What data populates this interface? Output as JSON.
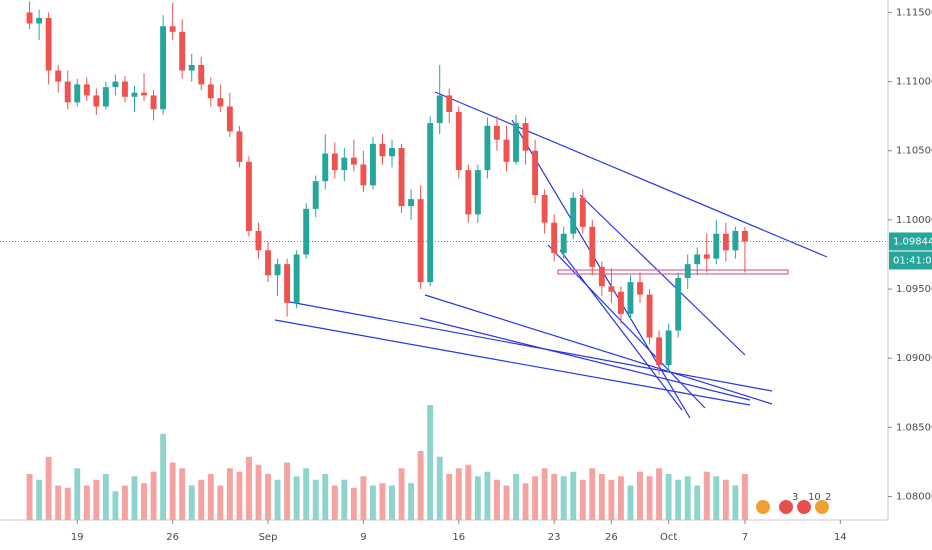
{
  "chart_data": {
    "type": "candlestick",
    "up_color": "#26a69a",
    "down_color": "#ef5350",
    "up_volume_color": "#8fd4cc",
    "down_volume_color": "#f5a3a1",
    "xlim": [
      -4.05,
      42.5
    ],
    "ylim": [
      1.0783,
      1.1159
    ],
    "xticks": [
      {
        "value": 0,
        "label": "19"
      },
      {
        "value": 5,
        "label": "26"
      },
      {
        "value": 10,
        "label": "Sep"
      },
      {
        "value": 15,
        "label": "9"
      },
      {
        "value": 20,
        "label": "16"
      },
      {
        "value": 25,
        "label": "23"
      },
      {
        "value": 28,
        "label": "26"
      },
      {
        "value": 31,
        "label": "Oct"
      },
      {
        "value": 35,
        "label": "7"
      },
      {
        "value": 40,
        "label": "14"
      }
    ],
    "yticks": [
      {
        "value": 1.08,
        "label": "1.08000"
      },
      {
        "value": 1.085,
        "label": "1.08500"
      },
      {
        "value": 1.09,
        "label": "1.09000"
      },
      {
        "value": 1.095,
        "label": "1.09500"
      },
      {
        "value": 1.1,
        "label": "1.10000"
      },
      {
        "value": 1.105,
        "label": "1.10500"
      },
      {
        "value": 1.11,
        "label": "1.11000"
      },
      {
        "value": 1.115,
        "label": "1.11500"
      }
    ],
    "last_price": {
      "value": 1.09844,
      "label": "1.09844"
    },
    "countdown": "01:41:03",
    "event_labels": [
      "3",
      "10",
      "2"
    ],
    "candles": [
      [
        -2.5,
        1.115,
        1.1158,
        1.1138,
        1.1142
      ],
      [
        -2,
        1.1142,
        1.1152,
        1.113,
        1.1146
      ],
      [
        -1.5,
        1.1146,
        1.115,
        1.1098,
        1.1108
      ],
      [
        -1,
        1.1108,
        1.1112,
        1.1092,
        1.11
      ],
      [
        -0.5,
        1.11,
        1.1108,
        1.108,
        1.1085
      ],
      [
        0,
        1.1085,
        1.1102,
        1.1082,
        1.1098
      ],
      [
        0.5,
        1.1098,
        1.1103,
        1.1086,
        1.109
      ],
      [
        1,
        1.109,
        1.1095,
        1.1076,
        1.1082
      ],
      [
        1.5,
        1.1082,
        1.11,
        1.108,
        1.1096
      ],
      [
        2,
        1.1096,
        1.1105,
        1.109,
        1.11
      ],
      [
        2.5,
        1.11,
        1.1104,
        1.1085,
        1.1089
      ],
      [
        3,
        1.1089,
        1.1097,
        1.1078,
        1.1092
      ],
      [
        3.5,
        1.1092,
        1.1106,
        1.1086,
        1.109
      ],
      [
        4,
        1.109,
        1.1094,
        1.1072,
        1.108
      ],
      [
        4.5,
        1.108,
        1.1148,
        1.1076,
        1.114
      ],
      [
        5,
        1.114,
        1.1157,
        1.113,
        1.1136
      ],
      [
        5.5,
        1.1136,
        1.1145,
        1.1102,
        1.1108
      ],
      [
        6,
        1.1108,
        1.112,
        1.11,
        1.1112
      ],
      [
        6.5,
        1.1112,
        1.1118,
        1.1094,
        1.1098
      ],
      [
        7,
        1.1098,
        1.1103,
        1.1082,
        1.1088
      ],
      [
        7.5,
        1.1088,
        1.1098,
        1.1078,
        1.1082
      ],
      [
        8,
        1.1082,
        1.1092,
        1.106,
        1.1064
      ],
      [
        8.5,
        1.1064,
        1.1068,
        1.1038,
        1.1042
      ],
      [
        9,
        1.1042,
        1.1046,
        1.0988,
        1.0992
      ],
      [
        9.5,
        1.0992,
        1.0998,
        1.0972,
        1.0978
      ],
      [
        10,
        1.0978,
        1.0984,
        1.0955,
        1.096
      ],
      [
        10.5,
        1.096,
        1.0972,
        1.0945,
        1.0968
      ],
      [
        11,
        1.0968,
        1.0972,
        1.093,
        1.094
      ],
      [
        11.5,
        1.094,
        1.0978,
        1.0936,
        1.0975
      ],
      [
        12,
        1.0975,
        1.1012,
        1.0972,
        1.1008
      ],
      [
        12.5,
        1.1008,
        1.1032,
        1.1002,
        1.1028
      ],
      [
        13,
        1.1028,
        1.1062,
        1.1022,
        1.1048
      ],
      [
        13.5,
        1.1048,
        1.1056,
        1.103,
        1.1036
      ],
      [
        14,
        1.1036,
        1.1052,
        1.1028,
        1.1045
      ],
      [
        14.5,
        1.1045,
        1.1058,
        1.1035,
        1.104
      ],
      [
        15,
        1.104,
        1.105,
        1.102,
        1.1025
      ],
      [
        15.5,
        1.1025,
        1.106,
        1.1022,
        1.1055
      ],
      [
        16,
        1.1055,
        1.1062,
        1.104,
        1.1046
      ],
      [
        16.5,
        1.1046,
        1.1058,
        1.1038,
        1.1052
      ],
      [
        17,
        1.1052,
        1.1055,
        1.1005,
        1.101
      ],
      [
        17.5,
        1.101,
        1.1022,
        1.1,
        1.1015
      ],
      [
        18,
        1.1015,
        1.1025,
        1.095,
        1.0955
      ],
      [
        18.5,
        1.0955,
        1.1075,
        1.0952,
        1.107
      ],
      [
        19,
        1.107,
        1.1112,
        1.1062,
        1.109
      ],
      [
        19.5,
        1.109,
        1.1095,
        1.107,
        1.1078
      ],
      [
        20,
        1.1078,
        1.1082,
        1.103,
        1.1036
      ],
      [
        20.5,
        1.1036,
        1.104,
        1.0998,
        1.1004
      ],
      [
        21,
        1.1004,
        1.104,
        1.0998,
        1.1036
      ],
      [
        21.5,
        1.1036,
        1.1074,
        1.103,
        1.1068
      ],
      [
        22,
        1.1068,
        1.1075,
        1.105,
        1.1058
      ],
      [
        22.5,
        1.1058,
        1.1068,
        1.1035,
        1.1042
      ],
      [
        23,
        1.1042,
        1.1076,
        1.104,
        1.107
      ],
      [
        23.5,
        1.107,
        1.1074,
        1.104,
        1.105
      ],
      [
        24,
        1.105,
        1.1058,
        1.1012,
        1.1018
      ],
      [
        24.5,
        1.1018,
        1.1022,
        1.099,
        1.0998
      ],
      [
        25,
        1.0998,
        1.1004,
        1.097,
        1.0976
      ],
      [
        25.5,
        1.0976,
        1.0995,
        1.0972,
        1.099
      ],
      [
        26,
        1.099,
        1.102,
        1.0986,
        1.1016
      ],
      [
        26.5,
        1.1016,
        1.1022,
        1.099,
        1.0995
      ],
      [
        27,
        1.0995,
        1.1,
        1.096,
        1.0966
      ],
      [
        27.5,
        1.0966,
        1.097,
        1.0945,
        1.0952
      ],
      [
        28,
        1.0952,
        1.0965,
        1.094,
        1.0948
      ],
      [
        28.5,
        1.0948,
        1.0952,
        1.0925,
        1.0932
      ],
      [
        29,
        1.0932,
        1.096,
        1.0928,
        1.0955
      ],
      [
        29.5,
        1.0955,
        1.0962,
        1.094,
        1.0946
      ],
      [
        30,
        1.0946,
        1.095,
        1.091,
        1.0915
      ],
      [
        30.5,
        1.0915,
        1.092,
        1.0888,
        1.0895
      ],
      [
        31,
        1.0895,
        1.0925,
        1.089,
        1.092
      ],
      [
        31.5,
        1.092,
        1.0962,
        1.0915,
        1.0958
      ],
      [
        32,
        1.0958,
        1.0975,
        1.095,
        1.0968
      ],
      [
        32.5,
        1.0968,
        1.098,
        1.096,
        1.0975
      ],
      [
        33,
        1.0975,
        1.099,
        1.0962,
        1.0972
      ],
      [
        33.5,
        1.0972,
        1.1,
        1.0968,
        1.099
      ],
      [
        34,
        1.099,
        1.0998,
        1.097,
        1.0978
      ],
      [
        34.5,
        1.0978,
        1.0995,
        1.0972,
        1.0992
      ],
      [
        35,
        1.0992,
        1.0995,
        1.0962,
        1.09844
      ]
    ],
    "volume": [
      40,
      35,
      55,
      30,
      28,
      45,
      30,
      35,
      40,
      25,
      30,
      38,
      32,
      42,
      75,
      50,
      45,
      30,
      35,
      40,
      30,
      45,
      42,
      55,
      48,
      40,
      35,
      50,
      38,
      45,
      35,
      40,
      30,
      35,
      28,
      38,
      30,
      32,
      30,
      45,
      32,
      60,
      100,
      55,
      40,
      45,
      48,
      38,
      42,
      35,
      30,
      40,
      32,
      38,
      45,
      40,
      38,
      42,
      35,
      45,
      40,
      35,
      38,
      30,
      42,
      38,
      45,
      40,
      35,
      38,
      30,
      42,
      38,
      35,
      30,
      40
    ]
  }
}
